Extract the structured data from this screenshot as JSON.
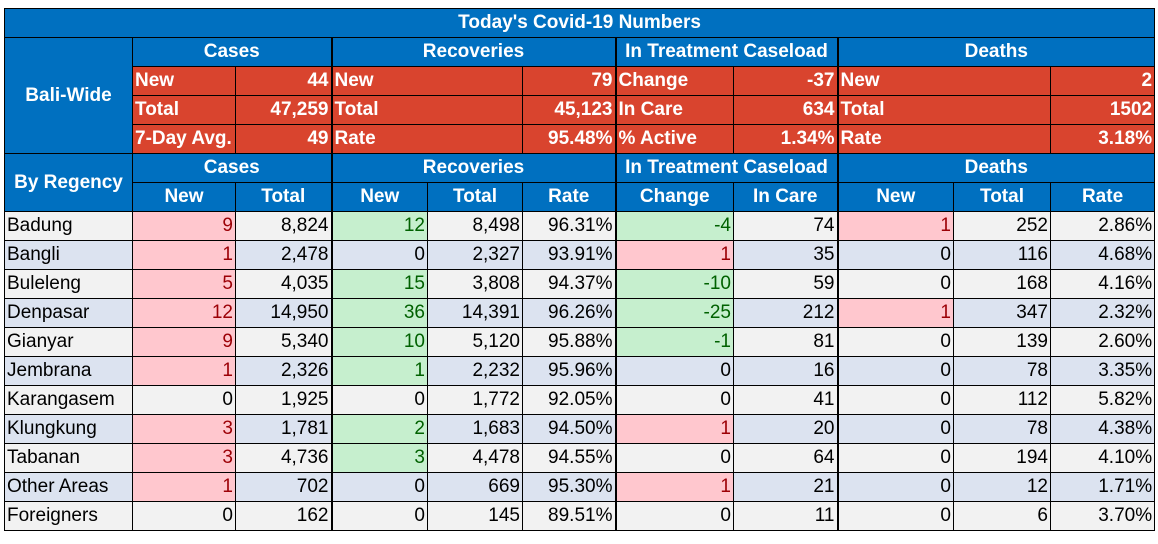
{
  "title": "Today's Covid-19 Numbers",
  "bali_label": "Bali-Wide",
  "regency_label": "By Regency",
  "groups": {
    "cases": "Cases",
    "recoveries": "Recoveries",
    "treatment": "In Treatment Caseload",
    "deaths": "Deaths"
  },
  "bali": {
    "cases": [
      [
        "New",
        "44"
      ],
      [
        "Total",
        "47,259"
      ],
      [
        "7-Day Avg.",
        "49"
      ]
    ],
    "recoveries": [
      [
        "New",
        "79"
      ],
      [
        "Total",
        "45,123"
      ],
      [
        "Rate",
        "95.48%"
      ]
    ],
    "treatment": [
      [
        "Change",
        "-37"
      ],
      [
        "In Care",
        "634"
      ],
      [
        "% Active",
        "1.34%"
      ]
    ],
    "deaths": [
      [
        "New",
        "2"
      ],
      [
        "Total",
        "1502"
      ],
      [
        "Rate",
        "3.18%"
      ]
    ]
  },
  "subheaders": [
    "New",
    "Total",
    "New",
    "Total",
    "Rate",
    "Change",
    "In Care",
    "New",
    "Total",
    "Rate"
  ],
  "rows": [
    {
      "name": "Badung",
      "c_new": "9",
      "c_total": "8,824",
      "r_new": "12",
      "r_total": "8,498",
      "r_rate": "96.31%",
      "t_change": "-4",
      "t_care": "74",
      "d_new": "1",
      "d_total": "252",
      "d_rate": "2.86%",
      "hl": {
        "c_new": "pink",
        "r_new": "green",
        "t_change": "green",
        "d_new": "pink"
      }
    },
    {
      "name": "Bangli",
      "c_new": "1",
      "c_total": "2,478",
      "r_new": "0",
      "r_total": "2,327",
      "r_rate": "93.91%",
      "t_change": "1",
      "t_care": "35",
      "d_new": "0",
      "d_total": "116",
      "d_rate": "4.68%",
      "hl": {
        "c_new": "pink",
        "t_change": "pink"
      }
    },
    {
      "name": "Buleleng",
      "c_new": "5",
      "c_total": "4,035",
      "r_new": "15",
      "r_total": "3,808",
      "r_rate": "94.37%",
      "t_change": "-10",
      "t_care": "59",
      "d_new": "0",
      "d_total": "168",
      "d_rate": "4.16%",
      "hl": {
        "c_new": "pink",
        "r_new": "green",
        "t_change": "green"
      }
    },
    {
      "name": "Denpasar",
      "c_new": "12",
      "c_total": "14,950",
      "r_new": "36",
      "r_total": "14,391",
      "r_rate": "96.26%",
      "t_change": "-25",
      "t_care": "212",
      "d_new": "1",
      "d_total": "347",
      "d_rate": "2.32%",
      "hl": {
        "c_new": "pink",
        "r_new": "green",
        "t_change": "green",
        "d_new": "pink"
      }
    },
    {
      "name": "Gianyar",
      "c_new": "9",
      "c_total": "5,340",
      "r_new": "10",
      "r_total": "5,120",
      "r_rate": "95.88%",
      "t_change": "-1",
      "t_care": "81",
      "d_new": "0",
      "d_total": "139",
      "d_rate": "2.60%",
      "hl": {
        "c_new": "pink",
        "r_new": "green",
        "t_change": "green"
      }
    },
    {
      "name": "Jembrana",
      "c_new": "1",
      "c_total": "2,326",
      "r_new": "1",
      "r_total": "2,232",
      "r_rate": "95.96%",
      "t_change": "0",
      "t_care": "16",
      "d_new": "0",
      "d_total": "78",
      "d_rate": "3.35%",
      "hl": {
        "c_new": "pink",
        "r_new": "green"
      }
    },
    {
      "name": "Karangasem",
      "c_new": "0",
      "c_total": "1,925",
      "r_new": "0",
      "r_total": "1,772",
      "r_rate": "92.05%",
      "t_change": "0",
      "t_care": "41",
      "d_new": "0",
      "d_total": "112",
      "d_rate": "5.82%",
      "hl": {}
    },
    {
      "name": "Klungkung",
      "c_new": "3",
      "c_total": "1,781",
      "r_new": "2",
      "r_total": "1,683",
      "r_rate": "94.50%",
      "t_change": "1",
      "t_care": "20",
      "d_new": "0",
      "d_total": "78",
      "d_rate": "4.38%",
      "hl": {
        "c_new": "pink",
        "r_new": "green",
        "t_change": "pink"
      }
    },
    {
      "name": "Tabanan",
      "c_new": "3",
      "c_total": "4,736",
      "r_new": "3",
      "r_total": "4,478",
      "r_rate": "94.55%",
      "t_change": "0",
      "t_care": "64",
      "d_new": "0",
      "d_total": "194",
      "d_rate": "4.10%",
      "hl": {
        "c_new": "pink",
        "r_new": "green"
      }
    },
    {
      "name": "Other Areas",
      "c_new": "1",
      "c_total": "702",
      "r_new": "0",
      "r_total": "669",
      "r_rate": "95.30%",
      "t_change": "1",
      "t_care": "21",
      "d_new": "0",
      "d_total": "12",
      "d_rate": "1.71%",
      "hl": {
        "c_new": "pink",
        "t_change": "pink"
      }
    },
    {
      "name": "Foreigners",
      "c_new": "0",
      "c_total": "162",
      "r_new": "0",
      "r_total": "145",
      "r_rate": "89.51%",
      "t_change": "0",
      "t_care": "11",
      "d_new": "0",
      "d_total": "6",
      "d_rate": "3.70%",
      "hl": {}
    }
  ],
  "colors": {
    "header_blue": "#0070c0",
    "summary_red": "#d9442e",
    "increase_pink": "#ffc7ce",
    "decrease_green": "#c6efce"
  }
}
